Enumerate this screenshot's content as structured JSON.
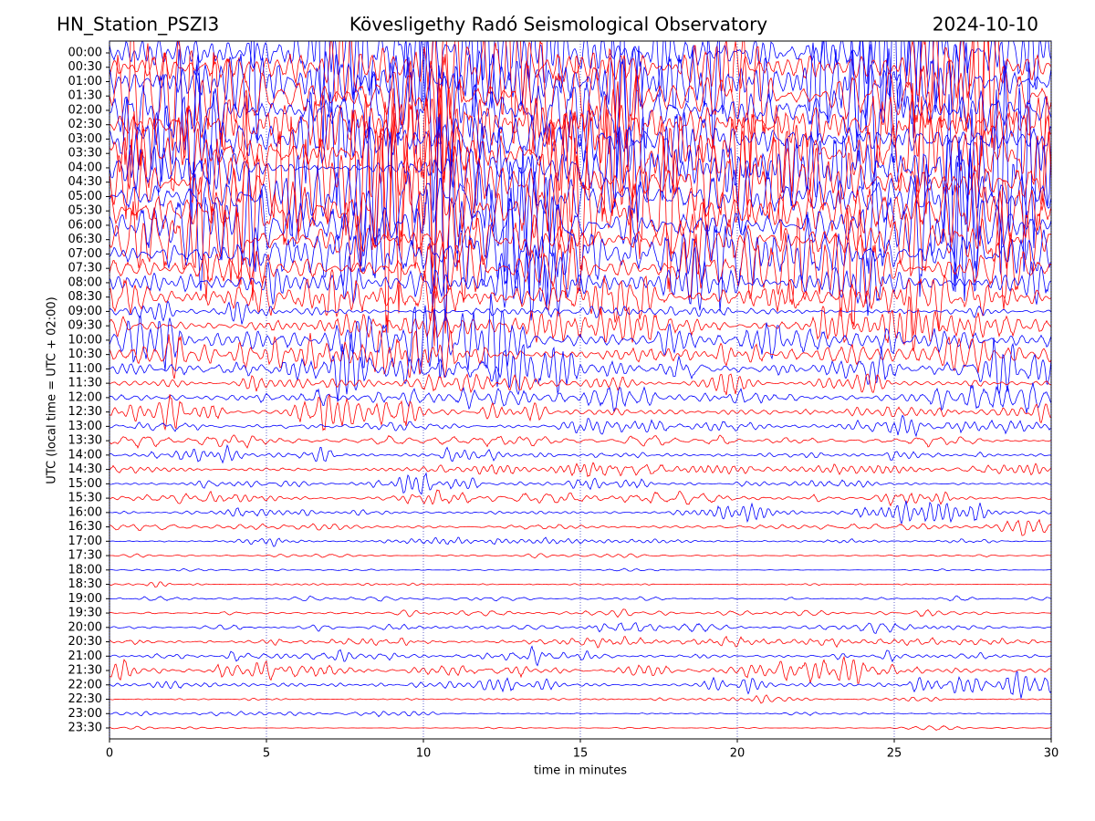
{
  "chart_data": {
    "type": "helicorder",
    "station": "HN_Station_PSZI3",
    "title": "Kövesligethy Radó Seismological Observatory",
    "date": "2024-10-10",
    "xlabel": "time in minutes",
    "ylabel": "UTC (local time = UTC + 02:00)",
    "xlim": [
      0,
      30
    ],
    "xticks": [
      0,
      5,
      10,
      15,
      20,
      25,
      30
    ],
    "grid": true,
    "colors": [
      "#0000ff",
      "#ff0000"
    ],
    "categories": [
      "00:00",
      "00:30",
      "01:00",
      "01:30",
      "02:00",
      "02:30",
      "03:00",
      "03:30",
      "04:00",
      "04:30",
      "05:00",
      "05:30",
      "06:00",
      "06:30",
      "07:00",
      "07:30",
      "08:00",
      "08:30",
      "09:00",
      "09:30",
      "10:00",
      "10:30",
      "11:00",
      "11:30",
      "12:00",
      "12:30",
      "13:00",
      "13:30",
      "14:00",
      "14:30",
      "15:00",
      "15:30",
      "16:00",
      "16:30",
      "17:00",
      "17:30",
      "18:00",
      "18:30",
      "19:00",
      "19:30",
      "20:00",
      "20:30",
      "21:00",
      "21:30",
      "22:00",
      "22:30",
      "23:00",
      "23:30"
    ],
    "amplitude": [
      2.5,
      2.5,
      2.5,
      2.5,
      2.5,
      2.5,
      2.5,
      2.5,
      2.5,
      2.5,
      2.3,
      2.3,
      2.3,
      2.2,
      2.0,
      2.0,
      1.8,
      1.2,
      0.3,
      0.8,
      1.2,
      1.2,
      1.0,
      0.5,
      0.6,
      0.5,
      0.3,
      0.3,
      0.3,
      0.4,
      0.2,
      0.4,
      0.3,
      0.2,
      0.1,
      0.1,
      0.05,
      0.05,
      0.15,
      0.2,
      0.2,
      0.25,
      0.2,
      0.4,
      0.4,
      0.1,
      0.1,
      0.05
    ]
  }
}
